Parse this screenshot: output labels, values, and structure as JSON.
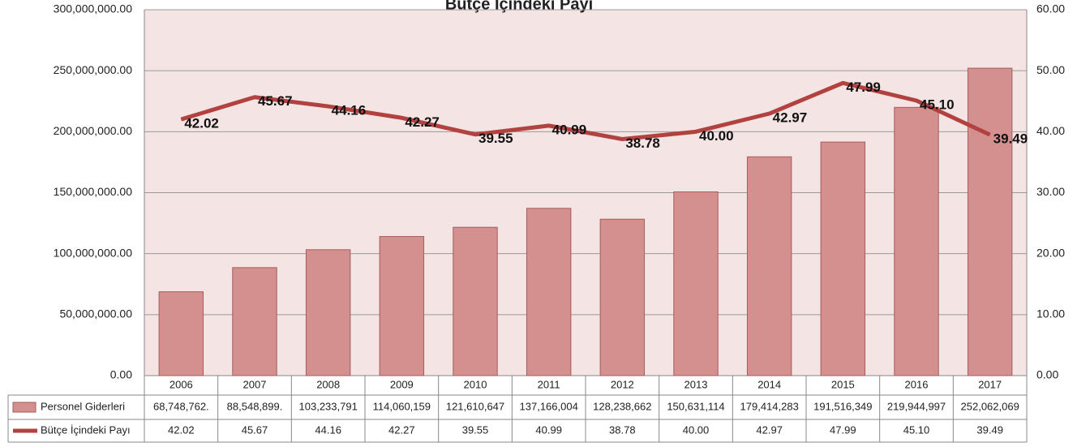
{
  "chart_data": {
    "type": "bar-line",
    "title": "Bütçe İçindeki Payı",
    "categories": [
      "2006",
      "2007",
      "2008",
      "2009",
      "2010",
      "2011",
      "2012",
      "2013",
      "2014",
      "2015",
      "2016",
      "2017"
    ],
    "series": [
      {
        "name": "Personel Giderleri",
        "color": "#d3908e",
        "type": "bar",
        "values": [
          68748762,
          88548899,
          103233791,
          114060159,
          121610647,
          137166004,
          128238662,
          150631114,
          179414283,
          191516349,
          219944997,
          252062069
        ],
        "value_labels": [
          "68,748,762.",
          "88,548,899.",
          "103,233,791",
          "114,060,159",
          "121,610,647",
          "137,166,004",
          "128,238,662",
          "150,631,114",
          "179,414,283",
          "191,516,349",
          "219,944,997",
          "252,062,069"
        ]
      },
      {
        "name": "Bütçe İçindeki Payı",
        "color": "#b2423f",
        "type": "line",
        "axis": "y2",
        "values": [
          42.02,
          45.67,
          44.16,
          42.27,
          39.55,
          40.99,
          38.78,
          40,
          42.97,
          47.99,
          45.1,
          39.49
        ],
        "value_labels": [
          "42.02",
          "45.67",
          "44.16",
          "42.27",
          "39.55",
          "40.99",
          "38.78",
          "40.00",
          "42.97",
          "47.99",
          "45.10",
          "39.49"
        ]
      }
    ],
    "ylim": [
      0,
      300000000
    ],
    "yticks": [
      {
        "value": 0,
        "label": "0.00"
      },
      {
        "value": 50000000,
        "label": "50,000,000.00"
      },
      {
        "value": 100000000,
        "label": "100,000,000.00"
      },
      {
        "value": 150000000,
        "label": "150,000,000.00"
      },
      {
        "value": 200000000,
        "label": "200,000,000.00"
      },
      {
        "value": 250000000,
        "label": "250,000,000.00"
      },
      {
        "value": 300000000,
        "label": "300,000,000.00"
      }
    ],
    "y2lim": [
      0,
      60
    ],
    "y2ticks": [
      {
        "value": 0,
        "label": "0.00"
      },
      {
        "value": 10,
        "label": "10.00"
      },
      {
        "value": 20,
        "label": "20.00"
      },
      {
        "value": 30,
        "label": "30.00"
      },
      {
        "value": 40,
        "label": "40.00"
      },
      {
        "value": 50,
        "label": "50.00"
      },
      {
        "value": 60,
        "label": "60.00"
      }
    ],
    "grid": true
  }
}
